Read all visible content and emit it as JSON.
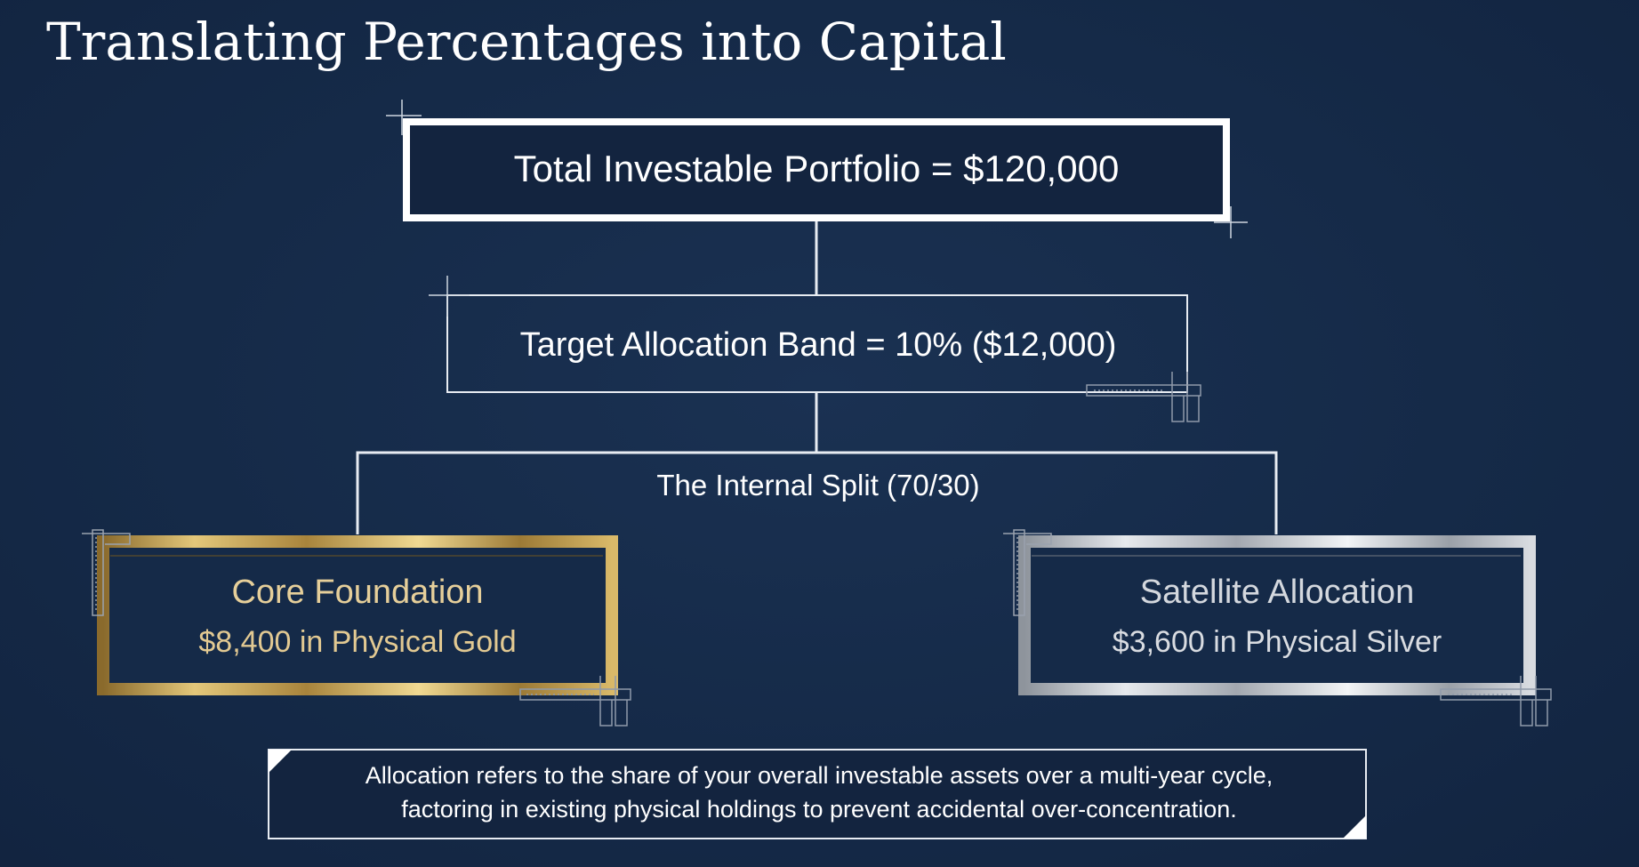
{
  "title": "Translating Percentages into Capital",
  "diagram": {
    "total_portfolio": "Total Investable Portfolio = $120,000",
    "target_band": "Target Allocation Band = 10% ($12,000)",
    "split_label": "The Internal Split (70/30)",
    "core": {
      "title": "Core Foundation",
      "amount": "$8,400 in Physical Gold",
      "color": "#c9a54e"
    },
    "satellite": {
      "title": "Satellite Allocation",
      "amount": "$3,600 in Physical Silver",
      "color": "#c4c8ce"
    }
  },
  "note": {
    "line1": "Allocation refers to the share of your overall investable assets over a multi-year cycle,",
    "line2": "factoring in existing physical holdings to prevent accidental over-concentration."
  },
  "colors": {
    "background": "#142744",
    "line": "#e8ecf2",
    "gold": "#c9a54e",
    "silver": "#c4c8ce"
  }
}
